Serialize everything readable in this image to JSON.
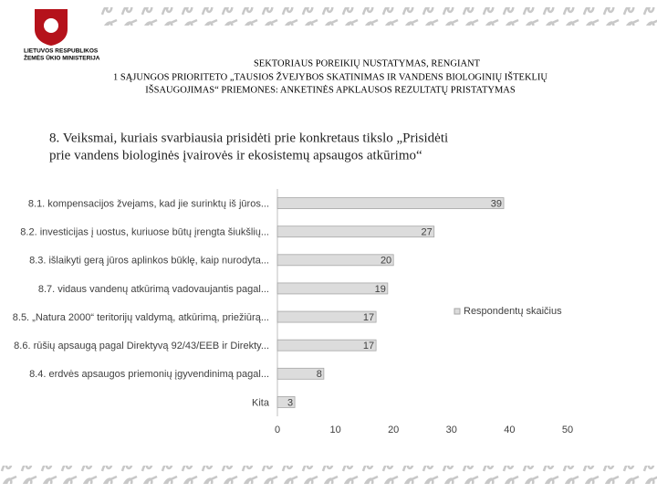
{
  "header": {
    "ministry": [
      "LIETUVOS RESPUBLIKOS",
      "ŽEMĖS ŪKIO MINISTERIJA"
    ],
    "title": [
      "SEKTORIAUS POREIKIŲ NUSTATYMAS, RENGIANT",
      "1 SĄJUNGOS PRIORITETO „TAUSIOS ŽVEJYBOS SKATINIMAS IR VANDENS BIOLOGINIŲ IŠTEKLIŲ",
      "IŠSAUGOJIMAS“ PRIEMONES: ANKETINĖS APKLAUSOS REZULTATŲ PRISTATYMAS"
    ]
  },
  "chart_data": {
    "type": "hbar",
    "title": [
      "8. Veiksmai, kuriais svarbiausia prisidėti prie konkretaus tikslo „Prisidėti",
      "prie vandens biologinės įvairovės ir ekosistemų apsaugos atkūrimo“"
    ],
    "categories": [
      "8.1. kompensacijos  žvejams, kad jie surinktų iš jūros...",
      "8.2. investicijas į uostus, kuriuose būtų įrengta šiukšlių...",
      "8.3. išlaikyti gerą jūros aplinkos būklę, kaip nurodyta...",
      "8.7.  vidaus vandenų atkūrimą vadovaujantis pagal...",
      "8.5. „Natura 2000“ teritorijų valdymą, atkūrimą, priežiūrą...",
      "8.6. rūšių apsaugą pagal Direktyvą 92/43/EEB ir Direkty...",
      "8.4. erdvės apsaugos priemonių įgyvendinimą pagal...",
      "Kita"
    ],
    "series": [
      {
        "name": "Respondentų skaičius",
        "color": "#dcdcdc",
        "values": [
          39,
          27,
          20,
          19,
          17,
          17,
          8,
          3
        ]
      }
    ],
    "xlim": [
      0,
      50
    ],
    "xticks": [
      0,
      10,
      20,
      30,
      40,
      50
    ],
    "legend": "right"
  }
}
